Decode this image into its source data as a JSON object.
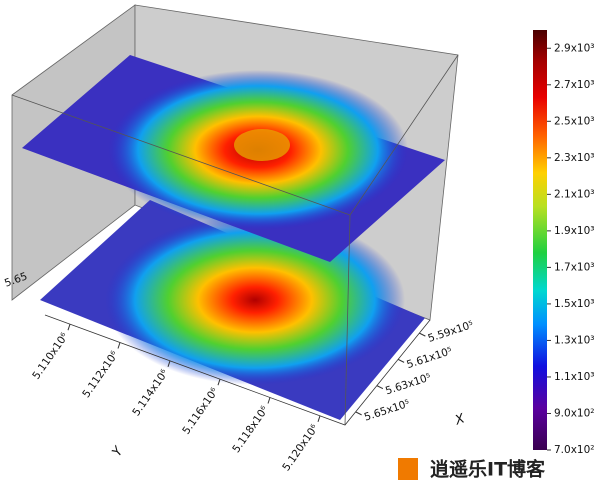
{
  "chart_data": {
    "type": "surface3d",
    "xlabel": "X",
    "ylabel": "Y",
    "edge_label": "5.65",
    "xlim": [
      558000,
      566000
    ],
    "xticks": [
      {
        "value": 559000,
        "label": "5.59x10⁵"
      },
      {
        "value": 561000,
        "label": "5.61x10⁵"
      },
      {
        "value": 563000,
        "label": "5.63x10⁵"
      },
      {
        "value": 565000,
        "label": "5.65x10⁵"
      }
    ],
    "ylim": [
      5109000,
      5121000
    ],
    "yticks": [
      {
        "value": 5110000,
        "label": "5.110x10⁶"
      },
      {
        "value": 5112000,
        "label": "5.112x10⁶"
      },
      {
        "value": 5114000,
        "label": "5.114x10⁶"
      },
      {
        "value": 5116000,
        "label": "5.116x10⁶"
      },
      {
        "value": 5118000,
        "label": "5.118x10⁶"
      },
      {
        "value": 5120000,
        "label": "5.120x10⁶"
      }
    ],
    "clim": [
      700,
      3000
    ],
    "cticks": [
      {
        "value": 700,
        "label": "7.0x10²"
      },
      {
        "value": 900,
        "label": "9.0x10²"
      },
      {
        "value": 1100,
        "label": "1.1x10³"
      },
      {
        "value": 1300,
        "label": "1.3x10³"
      },
      {
        "value": 1500,
        "label": "1.5x10³"
      },
      {
        "value": 1700,
        "label": "1.7x10³"
      },
      {
        "value": 1900,
        "label": "1.9x10³"
      },
      {
        "value": 2100,
        "label": "2.1x10³"
      },
      {
        "value": 2300,
        "label": "2.3x10³"
      },
      {
        "value": 2500,
        "label": "2.5x10³"
      },
      {
        "value": 2700,
        "label": "2.7x10³"
      },
      {
        "value": 2900,
        "label": "2.9x10³"
      }
    ]
  },
  "watermark": "逍遥乐IT博客"
}
